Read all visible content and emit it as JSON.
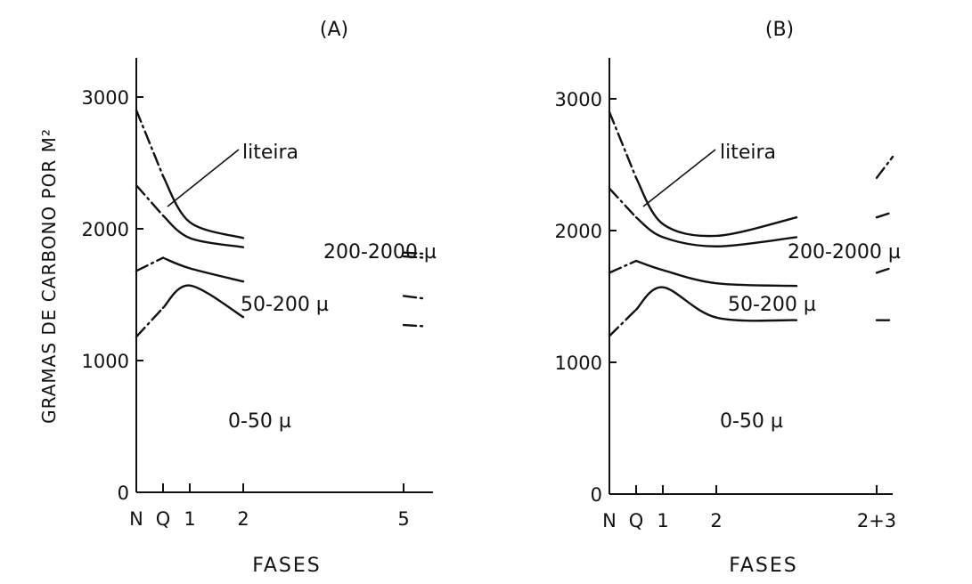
{
  "ylabel": "GRAMAS DE CARBONO POR M²",
  "chart_data": [
    {
      "type": "line",
      "title": "(A)",
      "xlabel": "FASES",
      "ylabel": "GRAMAS DE CARBONO POR M²",
      "ylim": [
        0,
        3300
      ],
      "yticks": [
        "0",
        "1000",
        "2000",
        "3000"
      ],
      "xticks": [
        "N",
        "Q",
        "1",
        "2",
        "5"
      ],
      "x_positions": [
        0,
        1,
        2,
        4,
        10
      ],
      "xlim": [
        0,
        11
      ],
      "regions": [
        "liteira",
        "200-2000 µ",
        "50-200 µ",
        "0-50 µ"
      ],
      "series": [
        {
          "key": "liteira_top",
          "points": [
            [
              0,
              2900
            ],
            [
              1,
              2400
            ],
            [
              2,
              2050
            ],
            [
              4,
              1930
            ],
            [
              10,
              1820
            ],
            [
              10.8,
              1810
            ]
          ]
        },
        {
          "key": "b200_2000",
          "points": [
            [
              0,
              2330
            ],
            [
              1,
              2100
            ],
            [
              2,
              1930
            ],
            [
              4,
              1860
            ],
            [
              10,
              1790
            ],
            [
              10.8,
              1780
            ]
          ]
        },
        {
          "key": "b50_200",
          "points": [
            [
              0,
              1680
            ],
            [
              1,
              1780
            ],
            [
              2,
              1700
            ],
            [
              4,
              1600
            ],
            [
              10,
              1490
            ],
            [
              10.8,
              1470
            ]
          ]
        },
        {
          "key": "b0_50",
          "points": [
            [
              0,
              1180
            ],
            [
              1,
              1400
            ],
            [
              2,
              1570
            ],
            [
              4,
              1330
            ],
            [
              10,
              1270
            ],
            [
              10.8,
              1260
            ]
          ]
        }
      ]
    },
    {
      "type": "line",
      "title": "(B)",
      "xlabel": "FASES",
      "ylabel": "",
      "ylim": [
        0,
        3300
      ],
      "yticks": [
        "0",
        "1000",
        "2000",
        "3000"
      ],
      "xticks": [
        "N",
        "Q",
        "1",
        "2",
        "2+3"
      ],
      "x_positions": [
        0,
        1,
        2,
        4,
        10
      ],
      "xlim": [
        0,
        11
      ],
      "regions": [
        "liteira",
        "200-2000 µ",
        "50-200 µ",
        "0-50 µ"
      ],
      "series": [
        {
          "key": "liteira_top",
          "points": [
            [
              0,
              2900
            ],
            [
              1,
              2400
            ],
            [
              2,
              2050
            ],
            [
              4,
              1960
            ],
            [
              7,
              2100
            ],
            [
              10,
              2400
            ],
            [
              10.6,
              2560
            ]
          ]
        },
        {
          "key": "b200_2000",
          "points": [
            [
              0,
              2320
            ],
            [
              1,
              2100
            ],
            [
              2,
              1950
            ],
            [
              4,
              1880
            ],
            [
              7,
              1950
            ],
            [
              10,
              2100
            ],
            [
              10.6,
              2140
            ]
          ]
        },
        {
          "key": "b50_200",
          "points": [
            [
              0,
              1680
            ],
            [
              1,
              1770
            ],
            [
              2,
              1700
            ],
            [
              4,
              1600
            ],
            [
              7,
              1580
            ],
            [
              10,
              1680
            ],
            [
              10.6,
              1720
            ]
          ]
        },
        {
          "key": "b0_50",
          "points": [
            [
              0,
              1200
            ],
            [
              1,
              1400
            ],
            [
              2,
              1570
            ],
            [
              4,
              1340
            ],
            [
              7,
              1320
            ],
            [
              10,
              1320
            ],
            [
              10.6,
              1320
            ]
          ]
        }
      ]
    }
  ]
}
